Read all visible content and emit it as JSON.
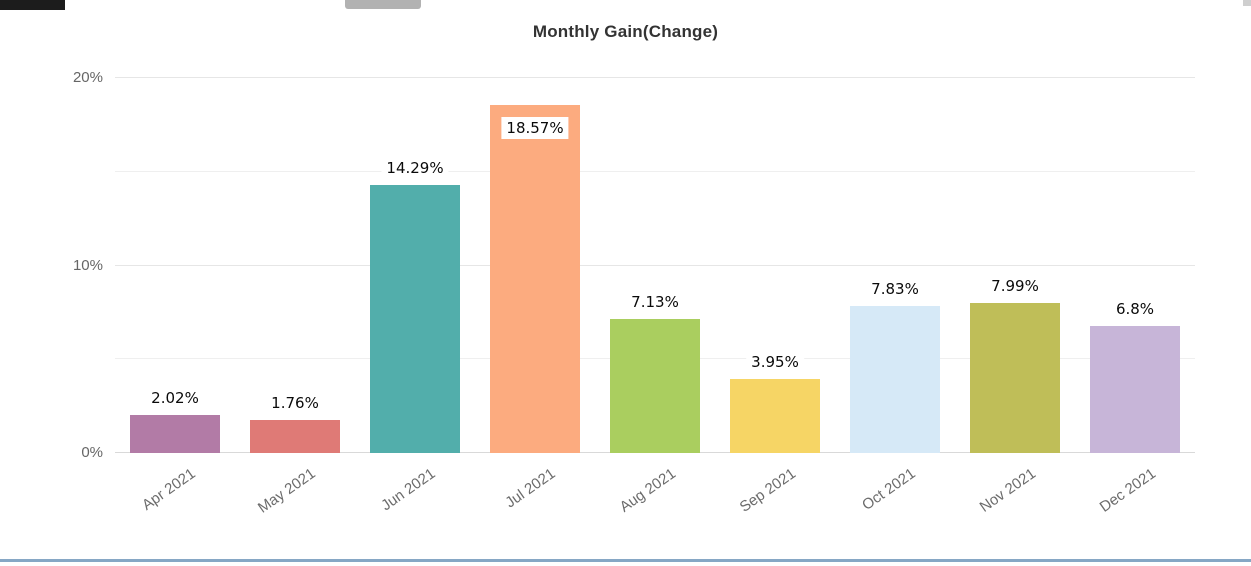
{
  "chart_data": {
    "type": "bar",
    "title": "Monthly Gain(Change)",
    "categories": [
      "Apr 2021",
      "May 2021",
      "Jun 2021",
      "Jul 2021",
      "Aug 2021",
      "Sep 2021",
      "Oct 2021",
      "Nov 2021",
      "Dec 2021"
    ],
    "values": [
      2.02,
      1.76,
      14.29,
      18.57,
      7.13,
      3.95,
      7.83,
      7.99,
      6.8
    ],
    "value_labels": [
      "2.02%",
      "1.76%",
      "14.29%",
      "18.57%",
      "7.13%",
      "3.95%",
      "7.83%",
      "7.99%",
      "6.8%"
    ],
    "bar_colors": [
      "#b27ba6",
      "#df7a76",
      "#52aeab",
      "#fcab7f",
      "#aace5f",
      "#f6d565",
      "#d6e9f7",
      "#bfbe58",
      "#c7b5d8"
    ],
    "xlabel": "",
    "ylabel": "",
    "ylim": [
      0,
      20
    ],
    "yticks": [
      {
        "value": 0,
        "label": "0%"
      },
      {
        "value": 10,
        "label": "10%"
      },
      {
        "value": 20,
        "label": "20%"
      }
    ],
    "gridline_values": [
      0,
      5,
      10,
      15,
      20
    ],
    "grid": "on",
    "legend": "none"
  }
}
